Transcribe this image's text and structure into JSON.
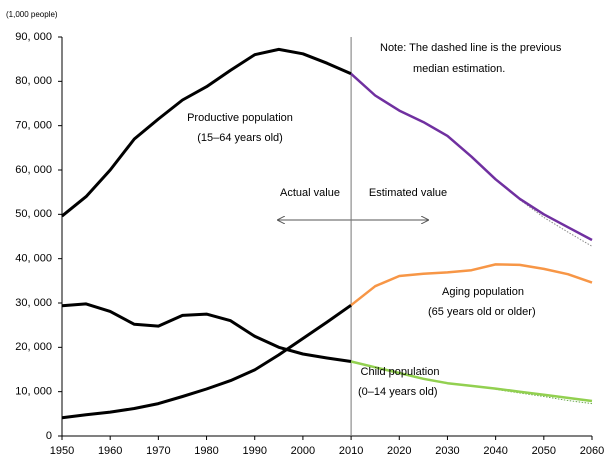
{
  "chart_data": {
    "type": "line",
    "unit_label": "(1,000 people)",
    "x": [
      1950,
      1955,
      1960,
      1965,
      1970,
      1975,
      1980,
      1985,
      1990,
      1995,
      2000,
      2005,
      2010,
      2015,
      2020,
      2025,
      2030,
      2035,
      2040,
      2045,
      2050,
      2055,
      2060
    ],
    "xlim": [
      1950,
      2060
    ],
    "xticks": [
      1950,
      1960,
      1970,
      1980,
      1990,
      2000,
      2010,
      2020,
      2030,
      2040,
      2050,
      2060
    ],
    "ylim": [
      0,
      90000
    ],
    "yticks": [
      0,
      {
        "value": 10000,
        "label": "10, 000"
      },
      {
        "value": 20000,
        "label": "20, 000"
      },
      {
        "value": 30000,
        "label": "30, 000"
      },
      {
        "value": 40000,
        "label": "40, 000"
      },
      {
        "value": 50000,
        "label": "50, 000"
      },
      {
        "value": 60000,
        "label": "60, 000"
      },
      {
        "value": 70000,
        "label": "70, 000"
      },
      {
        "value": 80000,
        "label": "80, 000"
      },
      {
        "value": 90000,
        "label": "90, 000"
      }
    ],
    "divider_x": 2010,
    "series": [
      {
        "name": "Productive population",
        "subname": "(15–64 years old)",
        "color_actual": "#000000",
        "color_estimate": "#7030a0",
        "color_previous": "#888888",
        "actual": [
          49600,
          54000,
          60000,
          67000,
          71500,
          75800,
          78800,
          82500,
          86000,
          87200,
          86200,
          84100,
          81700,
          null,
          null,
          null,
          null,
          null,
          null,
          null,
          null,
          null,
          null
        ],
        "estimate": [
          null,
          null,
          null,
          null,
          null,
          null,
          null,
          null,
          null,
          null,
          null,
          null,
          81700,
          76800,
          73400,
          70800,
          67700,
          63000,
          57900,
          53500,
          50000,
          47100,
          44200
        ],
        "previous": [
          null,
          null,
          null,
          null,
          null,
          null,
          null,
          null,
          null,
          null,
          null,
          null,
          null,
          null,
          null,
          null,
          null,
          null,
          null,
          53300,
          49300,
          46000,
          42800
        ]
      },
      {
        "name": "Aging population",
        "subname": "(65 years old or older)",
        "color_actual": "#000000",
        "color_estimate": "#f79646",
        "color_previous": "#f7b07a",
        "actual": [
          4100,
          4800,
          5400,
          6200,
          7300,
          8900,
          10600,
          12500,
          14900,
          18300,
          22000,
          25700,
          29500,
          null,
          null,
          null,
          null,
          null,
          null,
          null,
          null,
          null,
          null
        ],
        "estimate": [
          null,
          null,
          null,
          null,
          null,
          null,
          null,
          null,
          null,
          null,
          null,
          null,
          29500,
          33800,
          36100,
          36600,
          36900,
          37400,
          38700,
          38600,
          37700,
          36500,
          34600
        ],
        "previous": [
          null,
          null,
          null,
          null,
          null,
          null,
          null,
          null,
          null,
          null,
          null,
          null,
          null,
          null,
          null,
          null,
          null,
          null,
          null,
          null,
          null,
          null,
          null
        ]
      },
      {
        "name": "Child population",
        "subname": "(0–14 years old)",
        "color_actual": "#000000",
        "color_estimate": "#92d050",
        "color_previous": "#6aa84f",
        "actual": [
          29400,
          29800,
          28100,
          25200,
          24800,
          27200,
          27500,
          26000,
          22500,
          20000,
          18500,
          17600,
          16800,
          null,
          null,
          null,
          null,
          null,
          null,
          null,
          null,
          null,
          null
        ],
        "estimate": [
          null,
          null,
          null,
          null,
          null,
          null,
          null,
          null,
          null,
          null,
          null,
          null,
          16800,
          15500,
          14200,
          12900,
          11900,
          11300,
          10700,
          10000,
          9300,
          8600,
          7900
        ],
        "previous": [
          null,
          null,
          null,
          null,
          null,
          null,
          null,
          null,
          null,
          null,
          null,
          null,
          null,
          null,
          null,
          null,
          null,
          null,
          10500,
          9700,
          8900,
          8000,
          7300
        ]
      }
    ],
    "annotations": [
      "Note: The dashed line is the previous",
      "median estimation.",
      "Actual value",
      "Estimated value"
    ]
  }
}
